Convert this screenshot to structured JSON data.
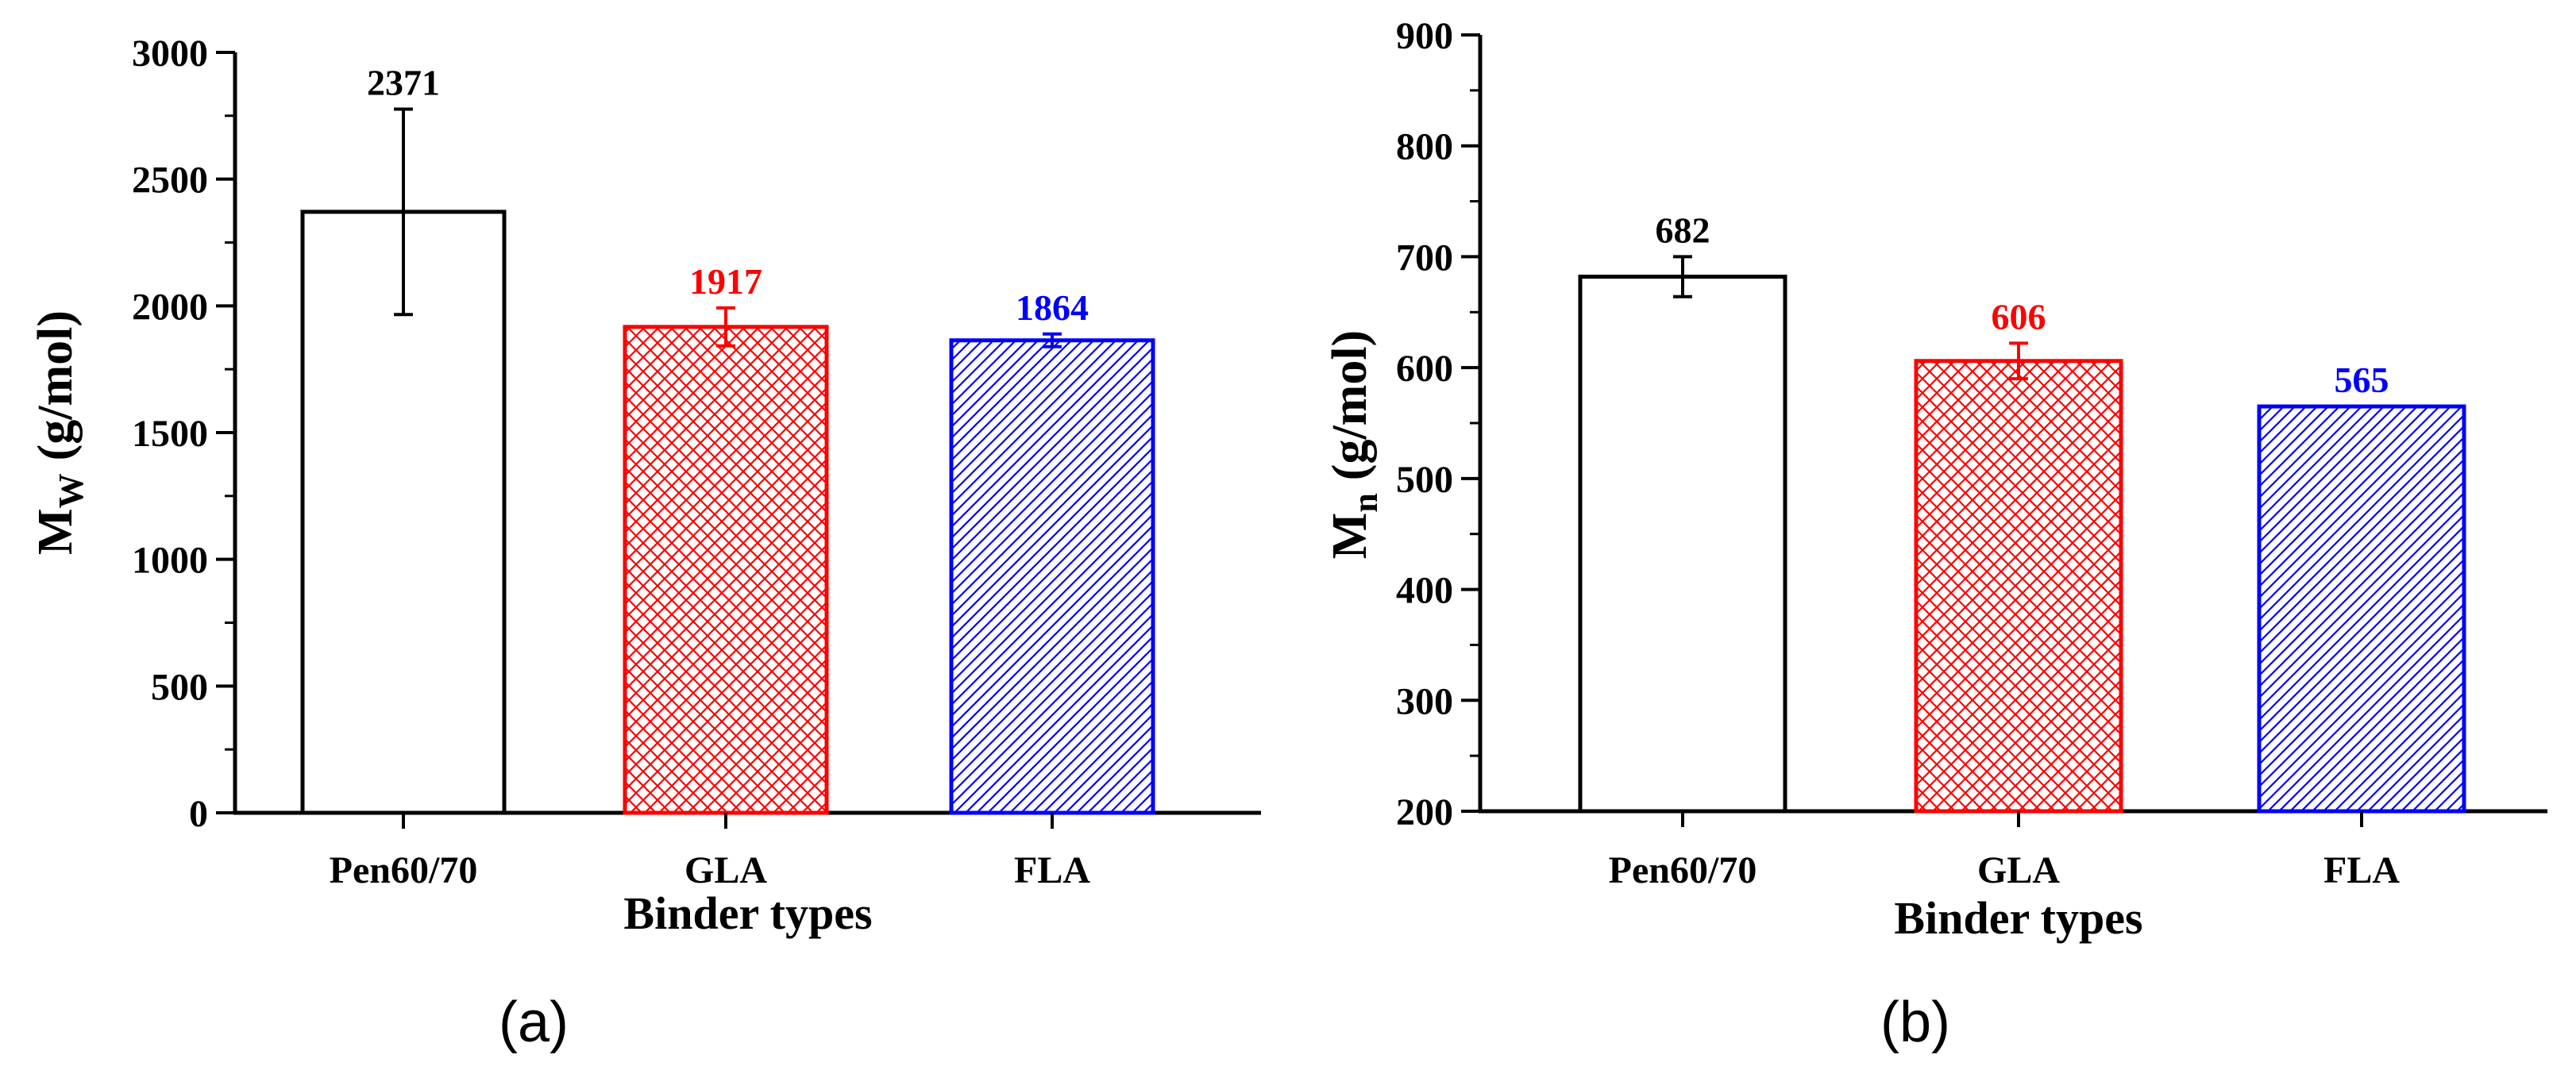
{
  "chart_data": [
    {
      "type": "bar",
      "panel_label": "(a)",
      "categories": [
        "Pen60/70",
        "GLA",
        "FLA"
      ],
      "values": [
        2371,
        1917,
        1864
      ],
      "errors": [
        405,
        75,
        25
      ],
      "data_labels": [
        "2371",
        "1917",
        "1864"
      ],
      "colors": [
        "#000000",
        "#ff0000",
        "#0000ff"
      ],
      "patterns": [
        "none",
        "crosshatch",
        "diagonal"
      ],
      "xlabel": "Binder types",
      "ylabel_main": "M",
      "ylabel_sub": "W",
      "ylabel_unit": "(g/mol)",
      "ylim": [
        0,
        3000
      ],
      "yticks": [
        0,
        500,
        1000,
        1500,
        2000,
        2500,
        3000
      ],
      "ytick_labels": [
        "0",
        "500",
        "1000",
        "1500",
        "2000",
        "2500",
        "3000"
      ]
    },
    {
      "type": "bar",
      "panel_label": "(b)",
      "categories": [
        "Pen60/70",
        "GLA",
        "FLA"
      ],
      "values": [
        682,
        606,
        565
      ],
      "errors": [
        18,
        16,
        0
      ],
      "data_labels": [
        "682",
        "606",
        "565"
      ],
      "colors": [
        "#000000",
        "#ff0000",
        "#0000ff"
      ],
      "patterns": [
        "none",
        "crosshatch",
        "diagonal"
      ],
      "xlabel": "Binder types",
      "ylabel_main": "M",
      "ylabel_sub": "n",
      "ylabel_unit": "(g/mol)",
      "ylim": [
        200,
        900
      ],
      "yticks": [
        200,
        300,
        400,
        500,
        600,
        700,
        800,
        900
      ],
      "ytick_labels": [
        "200",
        "300",
        "400",
        "500",
        "600",
        "700",
        "800",
        "900"
      ]
    }
  ]
}
